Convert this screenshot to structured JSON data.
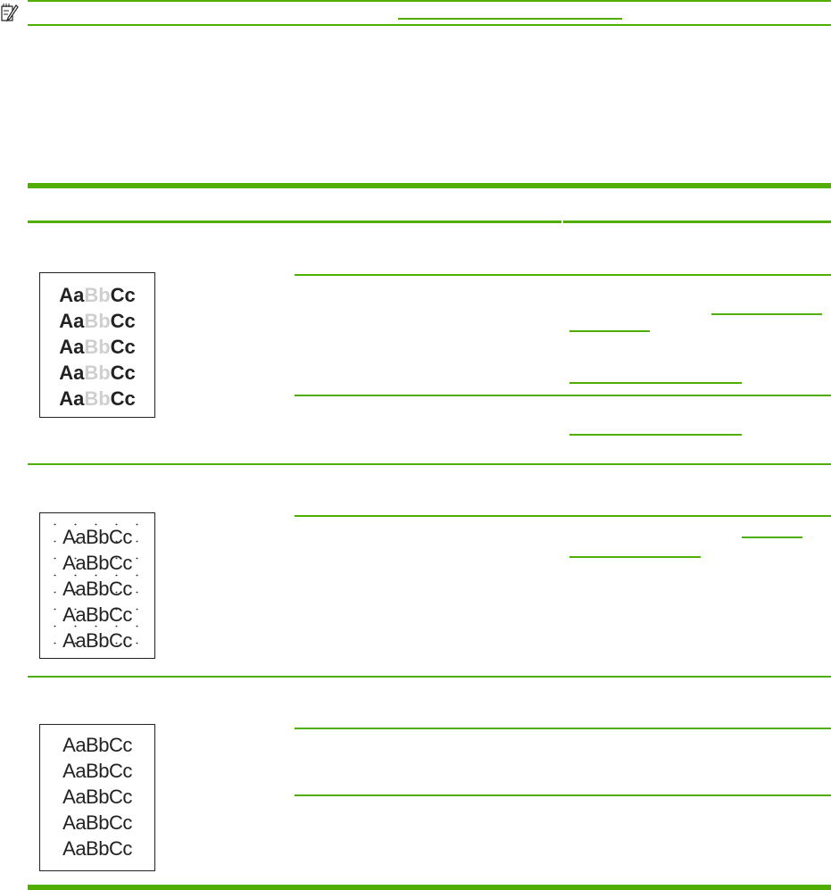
{
  "note": {
    "icon": "note-pencil-icon"
  },
  "colors": {
    "accent": "#4fae00",
    "faded_text": "#cfcfcf",
    "text": "#222222"
  },
  "samples": [
    {
      "kind": "light-print",
      "parts": [
        "Aa",
        "Bb",
        "Cc"
      ],
      "rows": 5
    },
    {
      "kind": "toner-specks",
      "text": "AaBbCc",
      "rows": 5
    },
    {
      "kind": "dropouts",
      "text": "AaBbCc",
      "rows": 5
    }
  ]
}
